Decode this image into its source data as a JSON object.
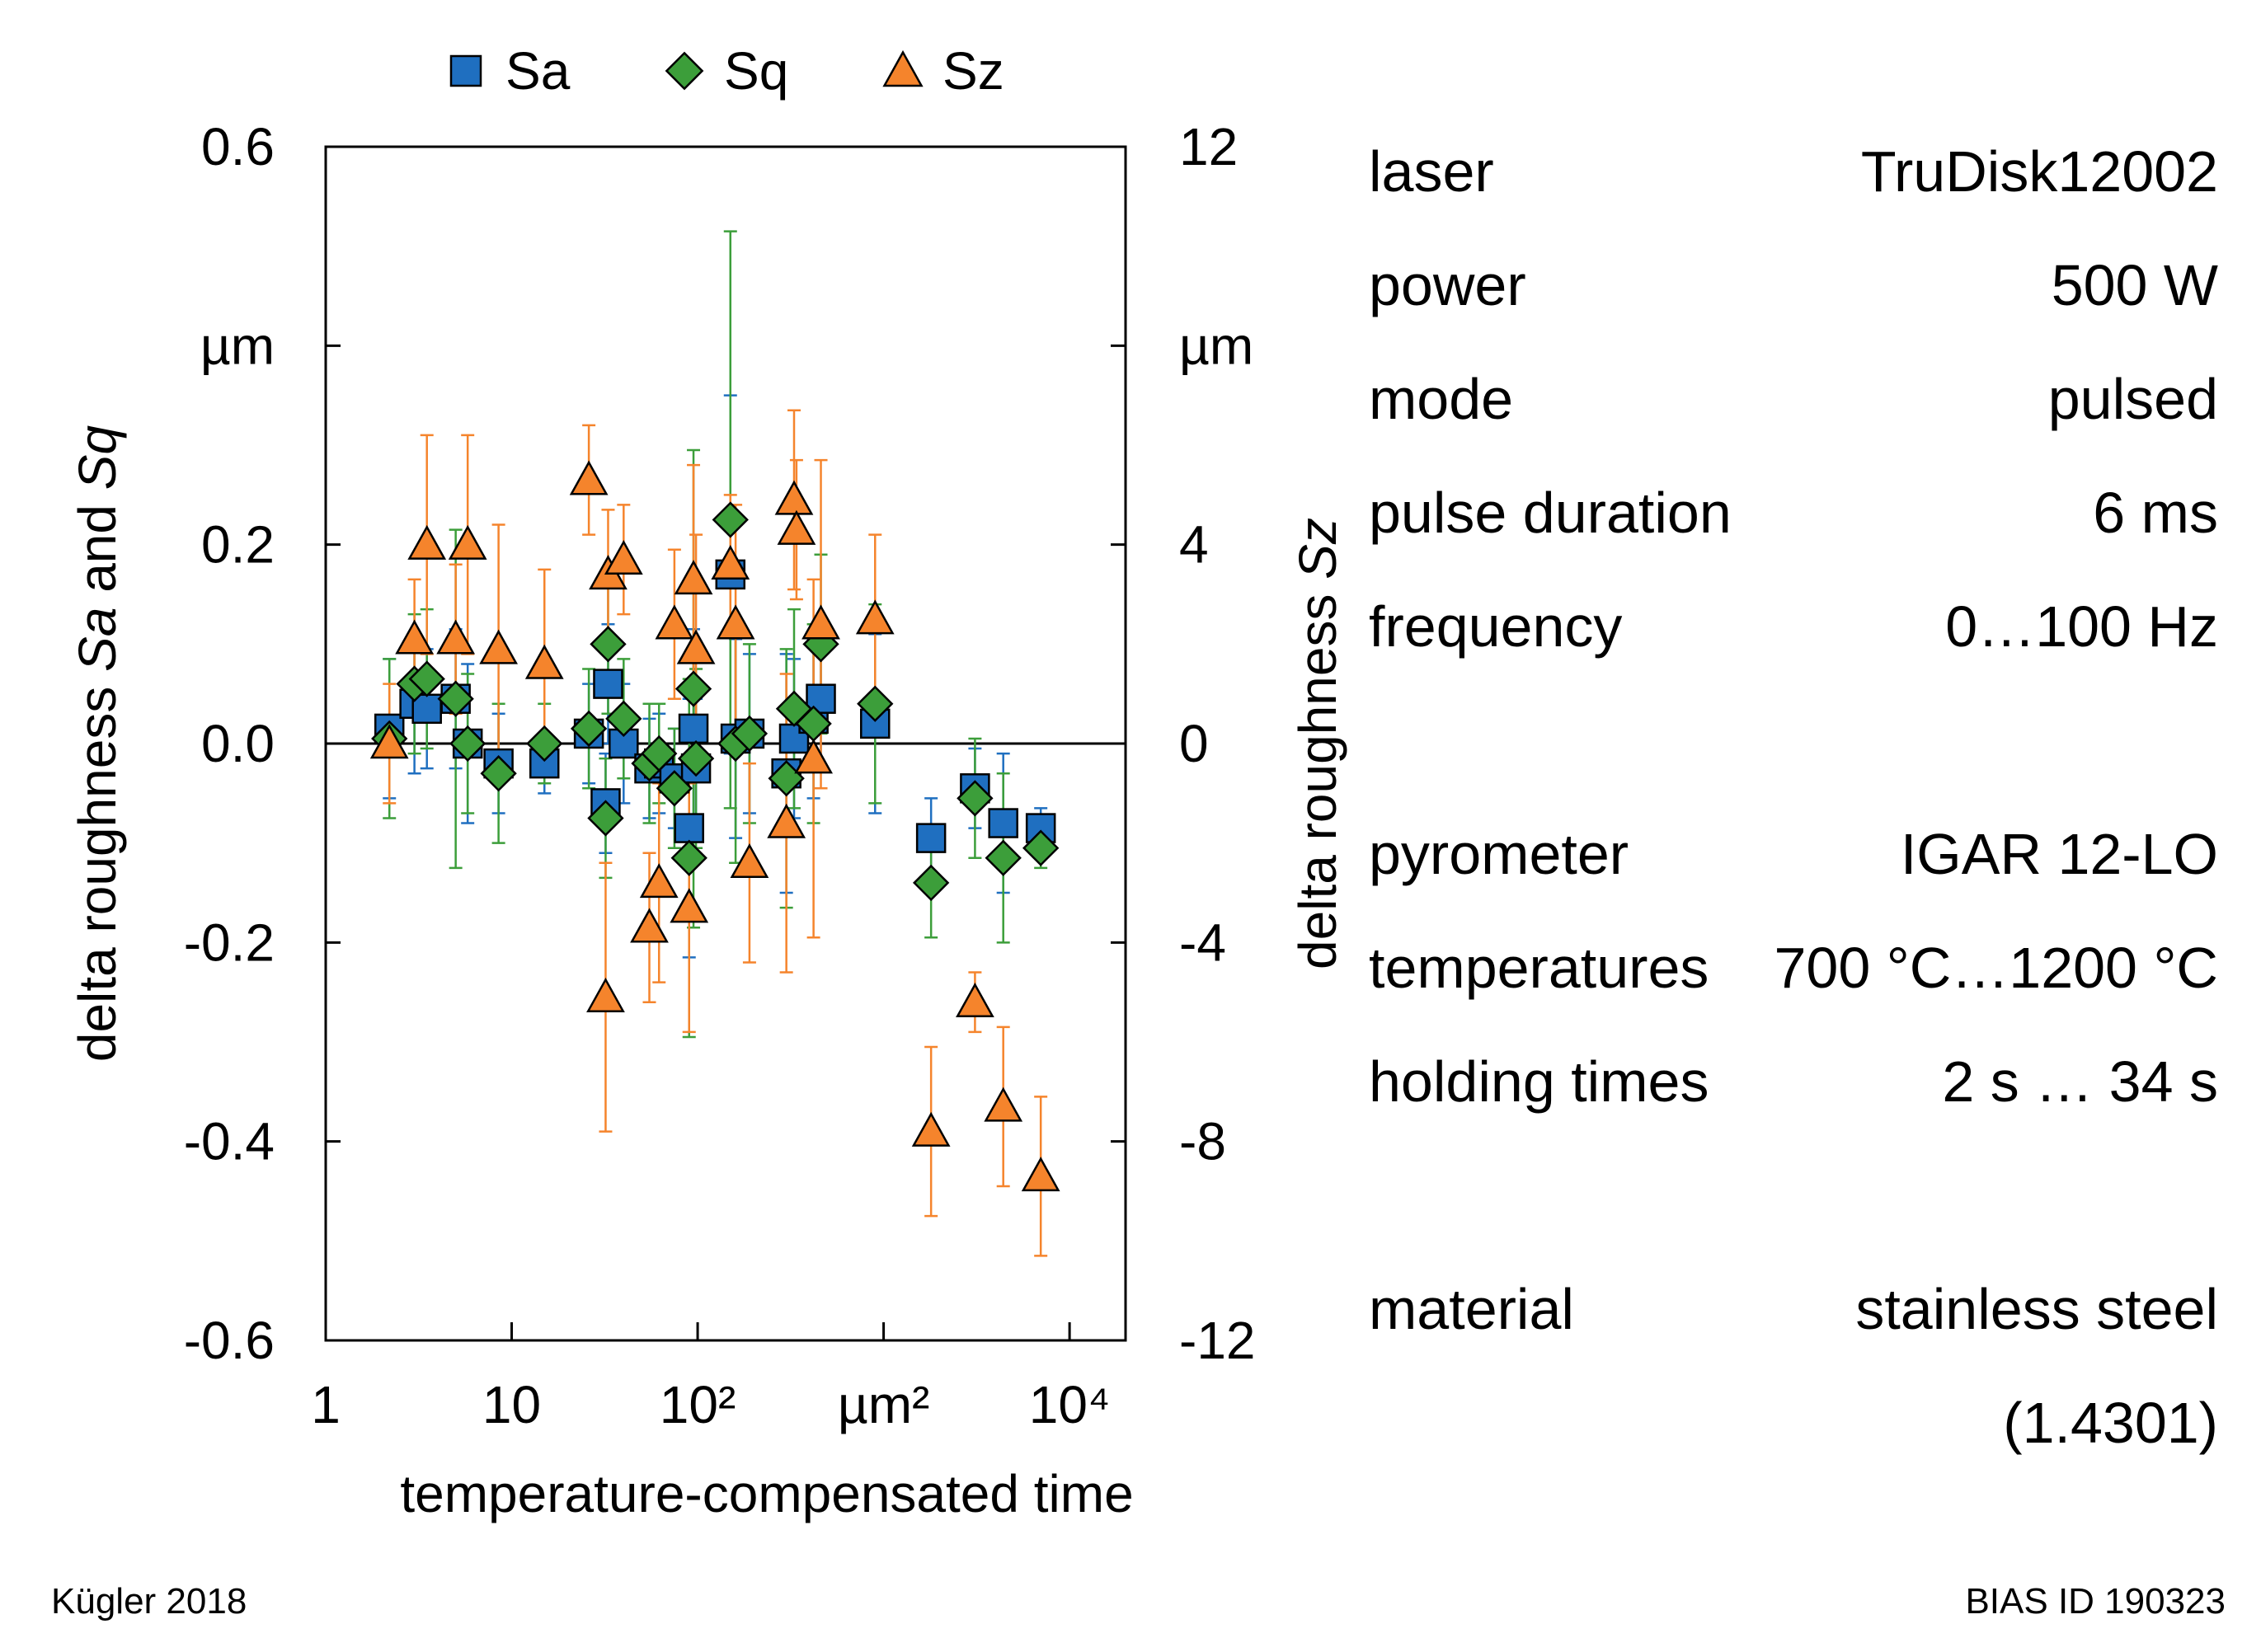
{
  "chart_data": {
    "type": "scatter",
    "x_scale": "log",
    "xlim": [
      1,
      20000
    ],
    "y_left_lim": [
      -0.6,
      0.6
    ],
    "y_right_lim": [
      -12,
      12
    ],
    "x_ticks": [
      1,
      10,
      100,
      1000,
      10000
    ],
    "x_tick_labels": [
      "1",
      "10",
      "10²",
      "µm²",
      "10⁴"
    ],
    "y_left_ticks": [
      -0.6,
      -0.4,
      -0.2,
      0.0,
      0.2,
      0.4,
      0.6
    ],
    "y_left_tick_labels": [
      "-0.6",
      "-0.4",
      "-0.2",
      "0.0",
      "0.2",
      "µm",
      "0.6"
    ],
    "y_right_ticks": [
      -12,
      -8,
      -4,
      0,
      4,
      8,
      12
    ],
    "y_right_tick_labels": [
      "-12",
      "-8",
      "-4",
      "0",
      "4",
      "µm",
      "12"
    ],
    "xlabel": "temperature-compensated time",
    "ylabel_left_parts": [
      "delta roughness ",
      "Sa",
      " and ",
      "Sq"
    ],
    "ylabel_right_parts": [
      "delta roughness ",
      "Sz"
    ],
    "legend": [
      "Sa",
      "Sq",
      "Sz"
    ],
    "series": [
      {
        "name": "Sa",
        "axis": "left",
        "marker": "square",
        "color": "#1f6fc0",
        "err_color": "#1f6fc0",
        "points": [
          {
            "x": 2.2,
            "y": 0.015,
            "err": 0.07
          },
          {
            "x": 3,
            "y": 0.04,
            "err": 0.07
          },
          {
            "x": 3.5,
            "y": 0.035,
            "err": 0.06
          },
          {
            "x": 5,
            "y": 0.045,
            "err": 0.07
          },
          {
            "x": 5.8,
            "y": 0.0,
            "err": 0.08
          },
          {
            "x": 8.5,
            "y": -0.02,
            "err": 0.05
          },
          {
            "x": 15,
            "y": -0.02,
            "err": 0.03
          },
          {
            "x": 26,
            "y": 0.01,
            "err": 0.05
          },
          {
            "x": 32,
            "y": -0.06,
            "err": 0.05
          },
          {
            "x": 33,
            "y": 0.06,
            "err": 0.06
          },
          {
            "x": 40,
            "y": 0.0,
            "err": 0.06
          },
          {
            "x": 55,
            "y": -0.025,
            "err": 0.05
          },
          {
            "x": 62,
            "y": -0.02,
            "err": 0.05
          },
          {
            "x": 75,
            "y": -0.035,
            "err": 0.05
          },
          {
            "x": 90,
            "y": -0.085,
            "err": 0.13
          },
          {
            "x": 95,
            "y": 0.015,
            "err": 0.1
          },
          {
            "x": 98,
            "y": -0.025,
            "err": 0.07
          },
          {
            "x": 150,
            "y": 0.17,
            "err": 0.18
          },
          {
            "x": 160,
            "y": 0.005,
            "err": 0.1
          },
          {
            "x": 190,
            "y": 0.01,
            "err": 0.08
          },
          {
            "x": 300,
            "y": -0.03,
            "err": 0.12
          },
          {
            "x": 330,
            "y": 0.005,
            "err": 0.08
          },
          {
            "x": 420,
            "y": 0.025,
            "err": 0.08
          },
          {
            "x": 460,
            "y": 0.045,
            "err": 0.07
          },
          {
            "x": 900,
            "y": 0.02,
            "err": 0.09
          },
          {
            "x": 1800,
            "y": -0.095,
            "err": 0.04
          },
          {
            "x": 3100,
            "y": -0.045,
            "err": 0.04
          },
          {
            "x": 4400,
            "y": -0.08,
            "err": 0.07
          },
          {
            "x": 7000,
            "y": -0.085,
            "err": 0.02
          }
        ]
      },
      {
        "name": "Sq",
        "axis": "left",
        "marker": "diamond",
        "color": "#3c9e3a",
        "err_color": "#3c9e3a",
        "points": [
          {
            "x": 2.2,
            "y": 0.005,
            "err": 0.08
          },
          {
            "x": 3,
            "y": 0.06,
            "err": 0.07
          },
          {
            "x": 3.5,
            "y": 0.065,
            "err": 0.07
          },
          {
            "x": 5,
            "y": 0.045,
            "err": 0.17
          },
          {
            "x": 5.8,
            "y": 0.0,
            "err": 0.07
          },
          {
            "x": 8.5,
            "y": -0.03,
            "err": 0.07
          },
          {
            "x": 15,
            "y": 0.0,
            "err": 0.04
          },
          {
            "x": 26,
            "y": 0.015,
            "err": 0.06
          },
          {
            "x": 32,
            "y": -0.075,
            "err": 0.06
          },
          {
            "x": 33,
            "y": 0.1,
            "err": 0.07
          },
          {
            "x": 40,
            "y": 0.025,
            "err": 0.06
          },
          {
            "x": 55,
            "y": -0.02,
            "err": 0.06
          },
          {
            "x": 62,
            "y": -0.01,
            "err": 0.05
          },
          {
            "x": 75,
            "y": -0.045,
            "err": 0.06
          },
          {
            "x": 90,
            "y": -0.115,
            "err": 0.18
          },
          {
            "x": 95,
            "y": 0.055,
            "err": 0.24
          },
          {
            "x": 98,
            "y": -0.015,
            "err": 0.09
          },
          {
            "x": 150,
            "y": 0.225,
            "err": 0.29
          },
          {
            "x": 160,
            "y": 0.0,
            "err": 0.12
          },
          {
            "x": 190,
            "y": 0.01,
            "err": 0.09
          },
          {
            "x": 300,
            "y": -0.035,
            "err": 0.13
          },
          {
            "x": 330,
            "y": 0.035,
            "err": 0.1
          },
          {
            "x": 420,
            "y": 0.02,
            "err": 0.1
          },
          {
            "x": 460,
            "y": 0.1,
            "err": 0.09
          },
          {
            "x": 900,
            "y": 0.04,
            "err": 0.1
          },
          {
            "x": 1800,
            "y": -0.14,
            "err": 0.055
          },
          {
            "x": 3100,
            "y": -0.055,
            "err": 0.06
          },
          {
            "x": 4400,
            "y": -0.115,
            "err": 0.085
          },
          {
            "x": 7000,
            "y": -0.105,
            "err": 0.02
          }
        ]
      },
      {
        "name": "Sz",
        "axis": "right",
        "marker": "triangle",
        "color": "#f5842c",
        "err_color": "#f5842c",
        "points": [
          {
            "x": 2.2,
            "y": 0.0,
            "err": 1.2
          },
          {
            "x": 3,
            "y": 2.1,
            "err": 1.2
          },
          {
            "x": 3.5,
            "y": 4.0,
            "err": 2.2
          },
          {
            "x": 5,
            "y": 2.1,
            "err": 1.5
          },
          {
            "x": 5.8,
            "y": 4.0,
            "err": 2.2
          },
          {
            "x": 8.5,
            "y": 1.9,
            "err": 2.5
          },
          {
            "x": 15,
            "y": 1.6,
            "err": 1.9
          },
          {
            "x": 26,
            "y": 5.3,
            "err": 1.1
          },
          {
            "x": 32,
            "y": -5.1,
            "err": 2.7
          },
          {
            "x": 33,
            "y": 3.4,
            "err": 1.3
          },
          {
            "x": 40,
            "y": 3.7,
            "err": 1.1
          },
          {
            "x": 55,
            "y": -3.7,
            "err": 1.5
          },
          {
            "x": 62,
            "y": -2.8,
            "err": 2.0
          },
          {
            "x": 75,
            "y": 2.4,
            "err": 1.5
          },
          {
            "x": 90,
            "y": -3.3,
            "err": 2.5
          },
          {
            "x": 95,
            "y": 3.3,
            "err": 2.3
          },
          {
            "x": 98,
            "y": 1.9,
            "err": 2.3
          },
          {
            "x": 150,
            "y": 3.6,
            "err": 1.4
          },
          {
            "x": 160,
            "y": 2.4,
            "err": 2.4
          },
          {
            "x": 190,
            "y": -2.4,
            "err": 2.0
          },
          {
            "x": 300,
            "y": -1.6,
            "err": 3.0
          },
          {
            "x": 330,
            "y": 4.9,
            "err": 1.8
          },
          {
            "x": 340,
            "y": 4.3,
            "err": 1.4
          },
          {
            "x": 420,
            "y": -0.3,
            "err": 3.6
          },
          {
            "x": 460,
            "y": 2.4,
            "err": 3.3
          },
          {
            "x": 900,
            "y": 2.5,
            "err": 1.7
          },
          {
            "x": 1800,
            "y": -7.8,
            "err": 1.7
          },
          {
            "x": 3100,
            "y": -5.2,
            "err": 0.6
          },
          {
            "x": 4400,
            "y": -7.3,
            "err": 1.6
          },
          {
            "x": 7000,
            "y": -8.7,
            "err": 1.6
          }
        ]
      }
    ]
  },
  "params": [
    {
      "label": "laser",
      "value": "TruDisk12002"
    },
    {
      "label": "power",
      "value": "500 W"
    },
    {
      "label": "mode",
      "value": "pulsed"
    },
    {
      "label": "pulse duration",
      "value": "6 ms"
    },
    {
      "label": "frequency",
      "value": "0…100 Hz"
    },
    {
      "label": "pyrometer",
      "value": "IGAR 12-LO"
    },
    {
      "label": "temperatures",
      "value": "700 °C…1200 °C"
    },
    {
      "label": "holding times",
      "value": "2 s … 34 s"
    },
    {
      "label": "material",
      "value": "stainless steel"
    },
    {
      "label": "",
      "value": "(1.4301)"
    }
  ],
  "footer": {
    "author": "Kügler 2018",
    "id": "BIAS ID 190323"
  }
}
